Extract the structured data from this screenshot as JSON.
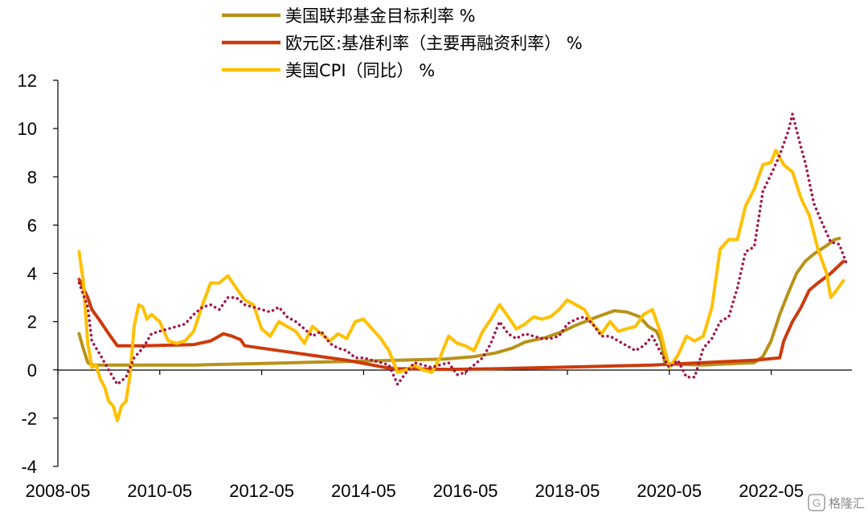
{
  "watermark": "格隆汇",
  "chart_data": {
    "type": "line",
    "title": "",
    "xlabel": "",
    "ylabel": "",
    "ylim": [
      -4,
      12
    ],
    "yticks": [
      -4,
      -2,
      0,
      2,
      4,
      6,
      8,
      10,
      12
    ],
    "xlim": [
      2008.333,
      2023.917
    ],
    "xticks": [
      {
        "label": "2008-05",
        "x": 2008.333
      },
      {
        "label": "2010-05",
        "x": 2010.333
      },
      {
        "label": "2012-05",
        "x": 2012.333
      },
      {
        "label": "2014-05",
        "x": 2014.333
      },
      {
        "label": "2016-05",
        "x": 2016.333
      },
      {
        "label": "2018-05",
        "x": 2018.333
      },
      {
        "label": "2020-05",
        "x": 2020.333
      },
      {
        "label": "2022-05",
        "x": 2022.333
      }
    ],
    "legend_position": "top",
    "series": [
      {
        "name": "美国联邦基金目标利率 %",
        "color": "#B8921A",
        "style": "solid",
        "points": [
          [
            2008.75,
            1.5
          ],
          [
            2008.83,
            0.9
          ],
          [
            2008.92,
            0.3
          ],
          [
            2009.0,
            0.2
          ],
          [
            2010.0,
            0.2
          ],
          [
            2011.0,
            0.2
          ],
          [
            2012.0,
            0.25
          ],
          [
            2013.0,
            0.3
          ],
          [
            2014.0,
            0.35
          ],
          [
            2015.0,
            0.4
          ],
          [
            2015.92,
            0.45
          ],
          [
            2016.5,
            0.55
          ],
          [
            2016.92,
            0.7
          ],
          [
            2017.25,
            0.9
          ],
          [
            2017.5,
            1.15
          ],
          [
            2017.92,
            1.35
          ],
          [
            2018.25,
            1.6
          ],
          [
            2018.5,
            1.85
          ],
          [
            2018.92,
            2.2
          ],
          [
            2019.25,
            2.45
          ],
          [
            2019.5,
            2.4
          ],
          [
            2019.75,
            2.2
          ],
          [
            2019.92,
            1.8
          ],
          [
            2020.08,
            1.6
          ],
          [
            2020.17,
            1.2
          ],
          [
            2020.25,
            0.25
          ],
          [
            2021.0,
            0.2
          ],
          [
            2021.5,
            0.25
          ],
          [
            2022.0,
            0.3
          ],
          [
            2022.17,
            0.55
          ],
          [
            2022.33,
            1.2
          ],
          [
            2022.5,
            2.3
          ],
          [
            2022.67,
            3.2
          ],
          [
            2022.83,
            4.0
          ],
          [
            2023.0,
            4.5
          ],
          [
            2023.17,
            4.8
          ],
          [
            2023.42,
            5.15
          ],
          [
            2023.58,
            5.4
          ],
          [
            2023.67,
            5.45
          ]
        ]
      },
      {
        "name": "欧元区:基准利率（主要再融资利率） %",
        "color": "#CC3A0C",
        "style": "solid",
        "points": [
          [
            2008.75,
            3.75
          ],
          [
            2008.92,
            3.0
          ],
          [
            2009.0,
            2.5
          ],
          [
            2009.17,
            2.0
          ],
          [
            2009.33,
            1.5
          ],
          [
            2009.5,
            1.0
          ],
          [
            2010.0,
            1.0
          ],
          [
            2011.0,
            1.05
          ],
          [
            2011.33,
            1.2
          ],
          [
            2011.58,
            1.5
          ],
          [
            2011.75,
            1.4
          ],
          [
            2011.92,
            1.25
          ],
          [
            2012.0,
            1.0
          ],
          [
            2013.0,
            0.7
          ],
          [
            2014.0,
            0.4
          ],
          [
            2014.75,
            0.1
          ],
          [
            2015.0,
            0.05
          ],
          [
            2016.0,
            0.02
          ],
          [
            2017.0,
            0.05
          ],
          [
            2018.0,
            0.1
          ],
          [
            2019.0,
            0.15
          ],
          [
            2020.0,
            0.2
          ],
          [
            2021.0,
            0.3
          ],
          [
            2022.0,
            0.4
          ],
          [
            2022.5,
            0.5
          ],
          [
            2022.58,
            1.2
          ],
          [
            2022.75,
            2.0
          ],
          [
            2022.92,
            2.6
          ],
          [
            2023.08,
            3.3
          ],
          [
            2023.25,
            3.6
          ],
          [
            2023.5,
            4.0
          ],
          [
            2023.75,
            4.5
          ]
        ]
      },
      {
        "name": "美国CPI（同比） %",
        "color": "#FFC000",
        "style": "solid",
        "points": [
          [
            2008.75,
            4.9
          ],
          [
            2008.83,
            3.7
          ],
          [
            2008.92,
            1.1
          ],
          [
            2009.0,
            0.1
          ],
          [
            2009.08,
            0.2
          ],
          [
            2009.17,
            -0.4
          ],
          [
            2009.25,
            -0.7
          ],
          [
            2009.33,
            -1.3
          ],
          [
            2009.42,
            -1.5
          ],
          [
            2009.5,
            -2.1
          ],
          [
            2009.58,
            -1.5
          ],
          [
            2009.67,
            -1.3
          ],
          [
            2009.75,
            -0.2
          ],
          [
            2009.83,
            1.8
          ],
          [
            2009.92,
            2.7
          ],
          [
            2010.0,
            2.6
          ],
          [
            2010.08,
            2.1
          ],
          [
            2010.17,
            2.3
          ],
          [
            2010.33,
            2.0
          ],
          [
            2010.5,
            1.2
          ],
          [
            2010.67,
            1.1
          ],
          [
            2010.83,
            1.2
          ],
          [
            2011.0,
            1.6
          ],
          [
            2011.17,
            2.7
          ],
          [
            2011.33,
            3.6
          ],
          [
            2011.5,
            3.6
          ],
          [
            2011.67,
            3.9
          ],
          [
            2011.83,
            3.4
          ],
          [
            2012.0,
            2.9
          ],
          [
            2012.17,
            2.7
          ],
          [
            2012.33,
            1.7
          ],
          [
            2012.5,
            1.4
          ],
          [
            2012.67,
            2.0
          ],
          [
            2012.83,
            1.8
          ],
          [
            2013.0,
            1.6
          ],
          [
            2013.17,
            1.1
          ],
          [
            2013.33,
            1.8
          ],
          [
            2013.5,
            1.5
          ],
          [
            2013.67,
            1.2
          ],
          [
            2013.83,
            1.5
          ],
          [
            2014.0,
            1.3
          ],
          [
            2014.17,
            2.0
          ],
          [
            2014.33,
            2.1
          ],
          [
            2014.5,
            1.7
          ],
          [
            2014.67,
            1.3
          ],
          [
            2014.83,
            0.8
          ],
          [
            2015.0,
            -0.1
          ],
          [
            2015.17,
            0.0
          ],
          [
            2015.33,
            0.2
          ],
          [
            2015.5,
            0.0
          ],
          [
            2015.67,
            -0.1
          ],
          [
            2015.83,
            0.5
          ],
          [
            2016.0,
            1.4
          ],
          [
            2016.17,
            1.1
          ],
          [
            2016.33,
            1.0
          ],
          [
            2016.5,
            0.8
          ],
          [
            2016.67,
            1.6
          ],
          [
            2016.83,
            2.1
          ],
          [
            2017.0,
            2.7
          ],
          [
            2017.17,
            2.2
          ],
          [
            2017.33,
            1.7
          ],
          [
            2017.5,
            1.9
          ],
          [
            2017.67,
            2.2
          ],
          [
            2017.83,
            2.1
          ],
          [
            2018.0,
            2.2
          ],
          [
            2018.17,
            2.5
          ],
          [
            2018.33,
            2.9
          ],
          [
            2018.5,
            2.7
          ],
          [
            2018.67,
            2.5
          ],
          [
            2018.83,
            1.9
          ],
          [
            2019.0,
            1.5
          ],
          [
            2019.17,
            2.0
          ],
          [
            2019.33,
            1.6
          ],
          [
            2019.5,
            1.7
          ],
          [
            2019.67,
            1.8
          ],
          [
            2019.83,
            2.3
          ],
          [
            2020.0,
            2.5
          ],
          [
            2020.17,
            1.5
          ],
          [
            2020.33,
            0.1
          ],
          [
            2020.5,
            0.6
          ],
          [
            2020.67,
            1.4
          ],
          [
            2020.83,
            1.2
          ],
          [
            2021.0,
            1.4
          ],
          [
            2021.17,
            2.6
          ],
          [
            2021.33,
            5.0
          ],
          [
            2021.5,
            5.4
          ],
          [
            2021.67,
            5.4
          ],
          [
            2021.83,
            6.8
          ],
          [
            2022.0,
            7.5
          ],
          [
            2022.17,
            8.5
          ],
          [
            2022.33,
            8.6
          ],
          [
            2022.42,
            9.1
          ],
          [
            2022.58,
            8.5
          ],
          [
            2022.75,
            8.2
          ],
          [
            2022.92,
            7.1
          ],
          [
            2023.08,
            6.4
          ],
          [
            2023.25,
            5.0
          ],
          [
            2023.42,
            4.0
          ],
          [
            2023.5,
            3.0
          ],
          [
            2023.58,
            3.2
          ],
          [
            2023.75,
            3.7
          ]
        ]
      },
      {
        "name": "",
        "color": "#A3154A",
        "style": "dotted",
        "points": [
          [
            2008.75,
            3.6
          ],
          [
            2008.92,
            2.6
          ],
          [
            2009.0,
            1.2
          ],
          [
            2009.17,
            0.6
          ],
          [
            2009.33,
            0.0
          ],
          [
            2009.5,
            -0.6
          ],
          [
            2009.67,
            -0.3
          ],
          [
            2009.83,
            0.5
          ],
          [
            2010.0,
            0.9
          ],
          [
            2010.17,
            1.5
          ],
          [
            2010.33,
            1.6
          ],
          [
            2010.5,
            1.7
          ],
          [
            2010.67,
            1.8
          ],
          [
            2010.83,
            1.9
          ],
          [
            2011.0,
            2.3
          ],
          [
            2011.17,
            2.6
          ],
          [
            2011.33,
            2.7
          ],
          [
            2011.5,
            2.5
          ],
          [
            2011.67,
            3.0
          ],
          [
            2011.83,
            3.0
          ],
          [
            2012.0,
            2.7
          ],
          [
            2012.17,
            2.6
          ],
          [
            2012.33,
            2.5
          ],
          [
            2012.5,
            2.4
          ],
          [
            2012.67,
            2.6
          ],
          [
            2012.83,
            2.2
          ],
          [
            2013.0,
            2.0
          ],
          [
            2013.17,
            1.7
          ],
          [
            2013.33,
            1.4
          ],
          [
            2013.5,
            1.6
          ],
          [
            2013.67,
            1.1
          ],
          [
            2013.83,
            0.9
          ],
          [
            2014.0,
            0.8
          ],
          [
            2014.17,
            0.5
          ],
          [
            2014.33,
            0.5
          ],
          [
            2014.5,
            0.4
          ],
          [
            2014.67,
            0.3
          ],
          [
            2014.83,
            0.2
          ],
          [
            2015.0,
            -0.6
          ],
          [
            2015.17,
            -0.1
          ],
          [
            2015.33,
            0.3
          ],
          [
            2015.5,
            0.2
          ],
          [
            2015.67,
            0.1
          ],
          [
            2015.83,
            0.2
          ],
          [
            2016.0,
            0.3
          ],
          [
            2016.17,
            -0.2
          ],
          [
            2016.33,
            -0.1
          ],
          [
            2016.5,
            0.2
          ],
          [
            2016.67,
            0.5
          ],
          [
            2016.83,
            1.1
          ],
          [
            2017.0,
            2.0
          ],
          [
            2017.17,
            1.5
          ],
          [
            2017.33,
            1.3
          ],
          [
            2017.5,
            1.5
          ],
          [
            2017.67,
            1.4
          ],
          [
            2017.83,
            1.3
          ],
          [
            2018.0,
            1.3
          ],
          [
            2018.17,
            1.4
          ],
          [
            2018.33,
            1.9
          ],
          [
            2018.5,
            2.1
          ],
          [
            2018.67,
            2.2
          ],
          [
            2018.83,
            1.9
          ],
          [
            2019.0,
            1.4
          ],
          [
            2019.17,
            1.4
          ],
          [
            2019.33,
            1.2
          ],
          [
            2019.5,
            1.0
          ],
          [
            2019.67,
            0.8
          ],
          [
            2019.83,
            1.0
          ],
          [
            2020.0,
            1.4
          ],
          [
            2020.17,
            0.7
          ],
          [
            2020.33,
            0.1
          ],
          [
            2020.5,
            0.4
          ],
          [
            2020.67,
            -0.3
          ],
          [
            2020.83,
            -0.3
          ],
          [
            2021.0,
            0.9
          ],
          [
            2021.17,
            1.3
          ],
          [
            2021.33,
            2.0
          ],
          [
            2021.5,
            2.2
          ],
          [
            2021.67,
            3.4
          ],
          [
            2021.83,
            4.9
          ],
          [
            2022.0,
            5.1
          ],
          [
            2022.17,
            7.4
          ],
          [
            2022.33,
            8.1
          ],
          [
            2022.5,
            8.9
          ],
          [
            2022.67,
            9.9
          ],
          [
            2022.75,
            10.6
          ],
          [
            2022.92,
            9.2
          ],
          [
            2023.0,
            8.6
          ],
          [
            2023.17,
            6.9
          ],
          [
            2023.33,
            6.1
          ],
          [
            2023.5,
            5.3
          ],
          [
            2023.67,
            5.2
          ],
          [
            2023.83,
            4.3
          ]
        ]
      }
    ]
  }
}
